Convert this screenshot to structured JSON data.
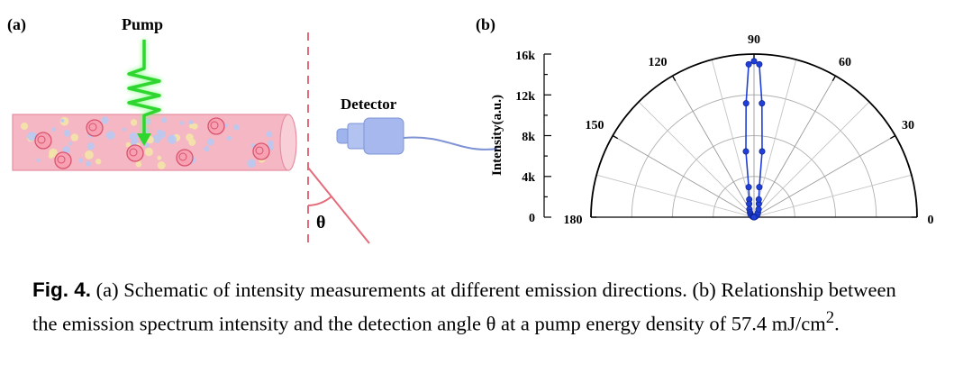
{
  "panel_a": {
    "label": "(a)",
    "pump_label": "Pump",
    "detector_label": "Detector",
    "angle_label": "θ",
    "colors": {
      "fiber": "#f5b7c3",
      "fiber_edge": "#e58ea2",
      "pump": "#2fd62f",
      "detector": "#a6b8ee",
      "dashed_line": "#e36b7a",
      "angle_line": "#e36b7a"
    }
  },
  "panel_b": {
    "label": "(b)",
    "angle_ticks": [
      "0",
      "30",
      "60",
      "90",
      "120",
      "150",
      "180"
    ],
    "radial_ticks": [
      "0",
      "4k",
      "8k",
      "12k",
      "16k"
    ],
    "ylabel": "Intensity(a.u.)",
    "line_color": "#1f3fd6"
  },
  "chart_data": {
    "type": "scatter",
    "subtype": "polar-half",
    "ylabel": "Intensity(a.u.)",
    "theta_range_deg": [
      0,
      180
    ],
    "r_range": [
      0,
      16000
    ],
    "theta_ticks_deg": [
      0,
      30,
      60,
      90,
      120,
      150,
      180
    ],
    "r_ticks": [
      "0",
      "4k",
      "8k",
      "12k",
      "16k"
    ],
    "grid": true,
    "series": [
      {
        "theta_deg": [
          0,
          10,
          20,
          30,
          40,
          50,
          60,
          70,
          75,
          80,
          83,
          86,
          88,
          90,
          92,
          94,
          97,
          100,
          105,
          110,
          120,
          130,
          140,
          150,
          160,
          170,
          180
        ],
        "r": [
          0,
          50,
          150,
          300,
          450,
          600,
          900,
          1400,
          1800,
          3000,
          6500,
          11200,
          15000,
          15300,
          15000,
          11200,
          6500,
          3000,
          1800,
          1400,
          900,
          600,
          450,
          300,
          150,
          50,
          0
        ]
      }
    ]
  },
  "caption": {
    "label": "Fig. 4.",
    "text_before_sup": " (a) Schematic of intensity measurements at different emission directions. (b) Relationship between the emission spectrum intensity and the detection angle θ at a pump energy density of 57.4 mJ/cm",
    "sup": "2",
    "text_after_sup": "."
  }
}
